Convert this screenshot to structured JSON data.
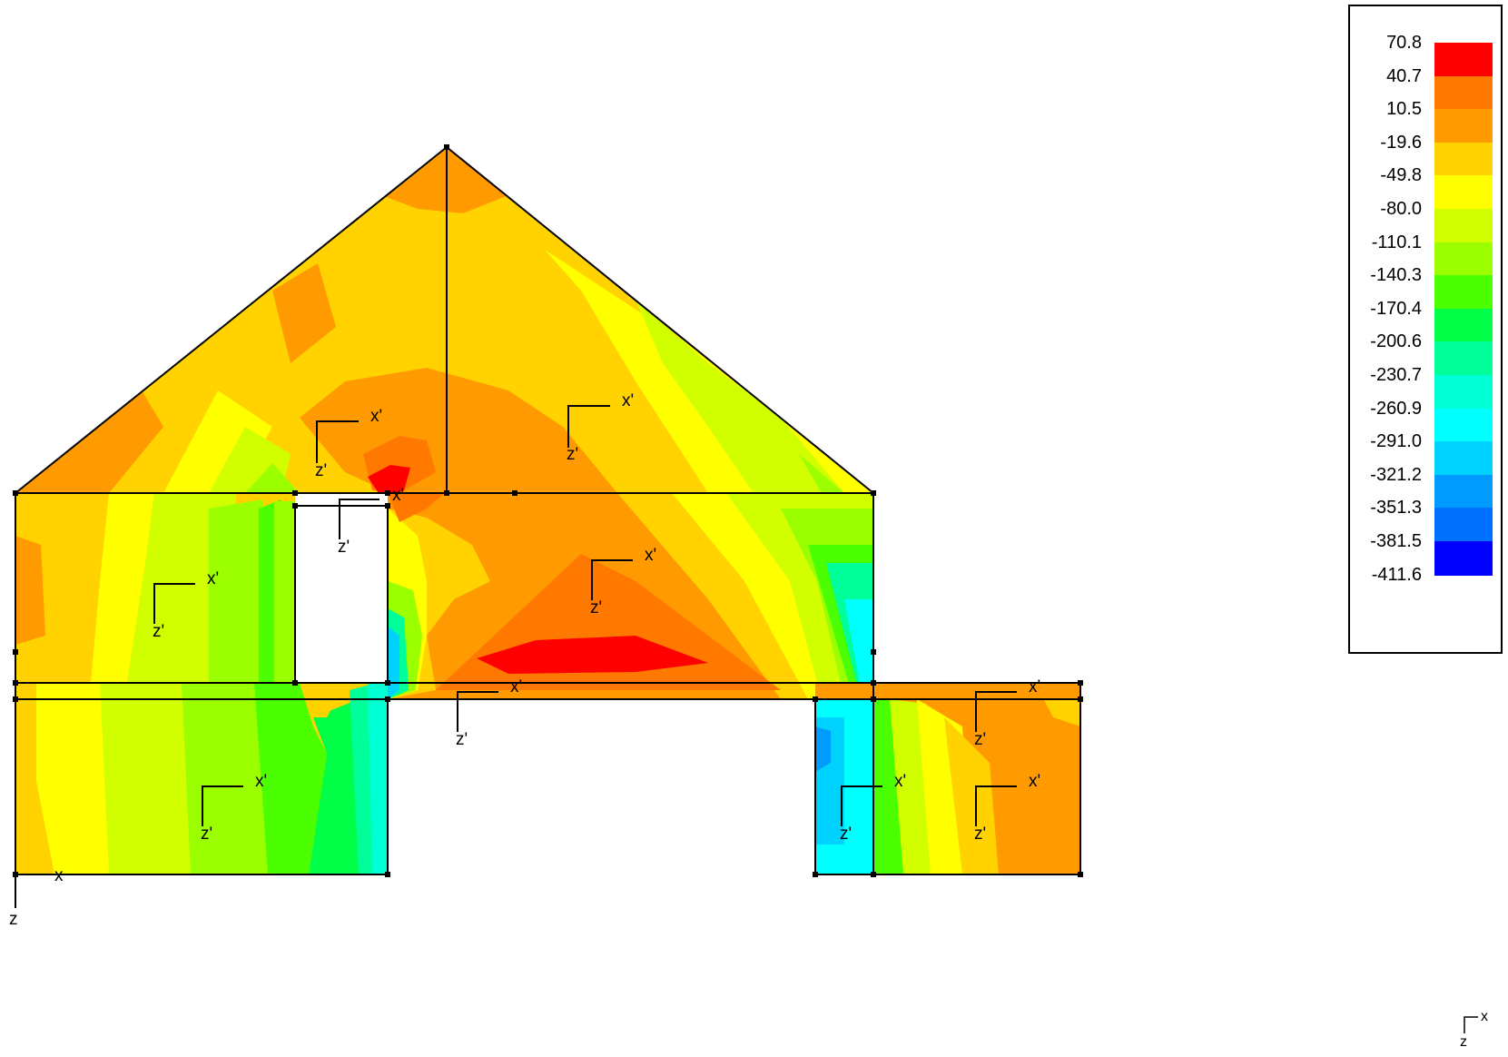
{
  "legend": {
    "values": [
      "70.8",
      "40.7",
      "10.5",
      "-19.6",
      "-49.8",
      "-80.0",
      "-110.1",
      "-140.3",
      "-170.4",
      "-200.6",
      "-230.7",
      "-260.9",
      "-291.0",
      "-321.2",
      "-351.3",
      "-381.5",
      "-411.6"
    ],
    "colors": [
      "#ff0000",
      "#ff7800",
      "#ff9b00",
      "#ffd200",
      "#ffff00",
      "#d2ff00",
      "#9bff00",
      "#4bff00",
      "#00ff46",
      "#00ff9b",
      "#00ffd2",
      "#00ffff",
      "#00d2ff",
      "#009bff",
      "#0070ff",
      "#0000ff"
    ]
  },
  "palette": {
    "deep_blue": "#0000ff",
    "blue": "#0070ff",
    "light_blue": "#009bff",
    "cyan_blue": "#00d2ff",
    "cyan": "#00ffff",
    "teal": "#00ffd2",
    "aqua": "#00ff9b",
    "green": "#00ff46",
    "bright_green": "#4bff00",
    "lime": "#9bff00",
    "yellow_green": "#d2ff00",
    "yellow": "#ffff00",
    "gold": "#ffd200",
    "orange": "#ff9b00",
    "dark_orange": "#ff7800",
    "red": "#ff0000"
  },
  "local_axes": [
    {
      "x": "x'",
      "z": "z'"
    },
    {
      "x": "x'",
      "z": "z'"
    },
    {
      "x": "x'",
      "z": "z'"
    },
    {
      "x": "x'",
      "z": "z'"
    },
    {
      "x": "x'",
      "z": "z'"
    },
    {
      "x": "x'",
      "z": "z'"
    },
    {
      "x": "x'",
      "z": "z'"
    },
    {
      "x": "x'",
      "z": "z'"
    },
    {
      "x": "x'",
      "z": "z'"
    },
    {
      "x": "x'",
      "z": "z'"
    },
    {
      "x": "x'",
      "z": "z'"
    }
  ],
  "global_axis": {
    "x": "x",
    "z": "z"
  },
  "corner_axis": {
    "x": "x",
    "z": "z"
  }
}
